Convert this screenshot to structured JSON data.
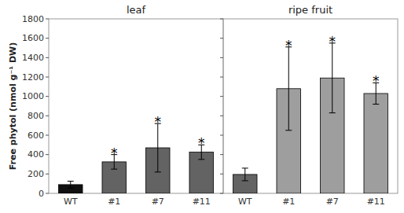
{
  "chart_data": [
    {
      "type": "bar",
      "title": "leaf",
      "ylabel": "Free phytol (nmol g⁻¹ DW)",
      "categories": [
        "WT",
        "#1",
        "#7",
        "#11"
      ],
      "values": [
        90,
        325,
        470,
        425
      ],
      "errors": [
        35,
        75,
        250,
        75
      ],
      "colors": [
        "#111111",
        "#636363",
        "#636363",
        "#636363"
      ],
      "annotations": [
        null,
        "*",
        "*",
        "*"
      ],
      "ylim": [
        0,
        1800
      ],
      "yticks": [
        0,
        200,
        400,
        600,
        800,
        1000,
        1200,
        1400,
        1600,
        1800
      ]
    },
    {
      "type": "bar",
      "title": "ripe fruit",
      "categories": [
        "WT",
        "#1",
        "#7",
        "#11"
      ],
      "values": [
        195,
        1080,
        1190,
        1030
      ],
      "errors": [
        65,
        430,
        360,
        110
      ],
      "colors": [
        "#636363",
        "#9e9e9e",
        "#9e9e9e",
        "#9e9e9e"
      ],
      "annotations": [
        null,
        "*",
        "*",
        "*"
      ],
      "ylim": [
        0,
        1800
      ],
      "yticks": [
        0,
        200,
        400,
        600,
        800,
        1000,
        1200,
        1400,
        1600,
        1800
      ],
      "tick_labels": "x"
    }
  ]
}
